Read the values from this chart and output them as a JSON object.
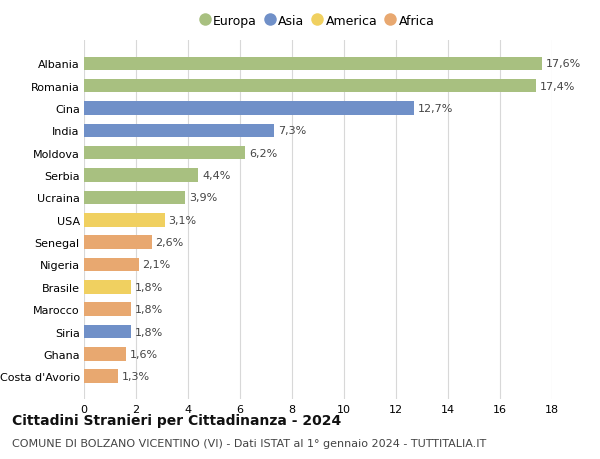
{
  "categories": [
    "Albania",
    "Romania",
    "Cina",
    "India",
    "Moldova",
    "Serbia",
    "Ucraina",
    "USA",
    "Senegal",
    "Nigeria",
    "Brasile",
    "Marocco",
    "Siria",
    "Ghana",
    "Costa d'Avorio"
  ],
  "values": [
    17.6,
    17.4,
    12.7,
    7.3,
    6.2,
    4.4,
    3.9,
    3.1,
    2.6,
    2.1,
    1.8,
    1.8,
    1.8,
    1.6,
    1.3
  ],
  "labels": [
    "17,6%",
    "17,4%",
    "12,7%",
    "7,3%",
    "6,2%",
    "4,4%",
    "3,9%",
    "3,1%",
    "2,6%",
    "2,1%",
    "1,8%",
    "1,8%",
    "1,8%",
    "1,6%",
    "1,3%"
  ],
  "colors": [
    "#a8c080",
    "#a8c080",
    "#7090c8",
    "#7090c8",
    "#a8c080",
    "#a8c080",
    "#a8c080",
    "#f0d060",
    "#e8a870",
    "#e8a870",
    "#f0d060",
    "#e8a870",
    "#7090c8",
    "#e8a870",
    "#e8a870"
  ],
  "legend_labels": [
    "Europa",
    "Asia",
    "America",
    "Africa"
  ],
  "legend_colors": [
    "#a8c080",
    "#7090c8",
    "#f0d060",
    "#e8a870"
  ],
  "title": "Cittadini Stranieri per Cittadinanza - 2024",
  "subtitle": "COMUNE DI BOLZANO VICENTINO (VI) - Dati ISTAT al 1° gennaio 2024 - TUTTITALIA.IT",
  "xlim": [
    0,
    18
  ],
  "xticks": [
    0,
    2,
    4,
    6,
    8,
    10,
    12,
    14,
    16,
    18
  ],
  "bg_color": "#ffffff",
  "grid_color": "#d8d8d8",
  "title_fontsize": 10,
  "subtitle_fontsize": 8,
  "label_fontsize": 8,
  "tick_fontsize": 8,
  "bar_height": 0.6
}
